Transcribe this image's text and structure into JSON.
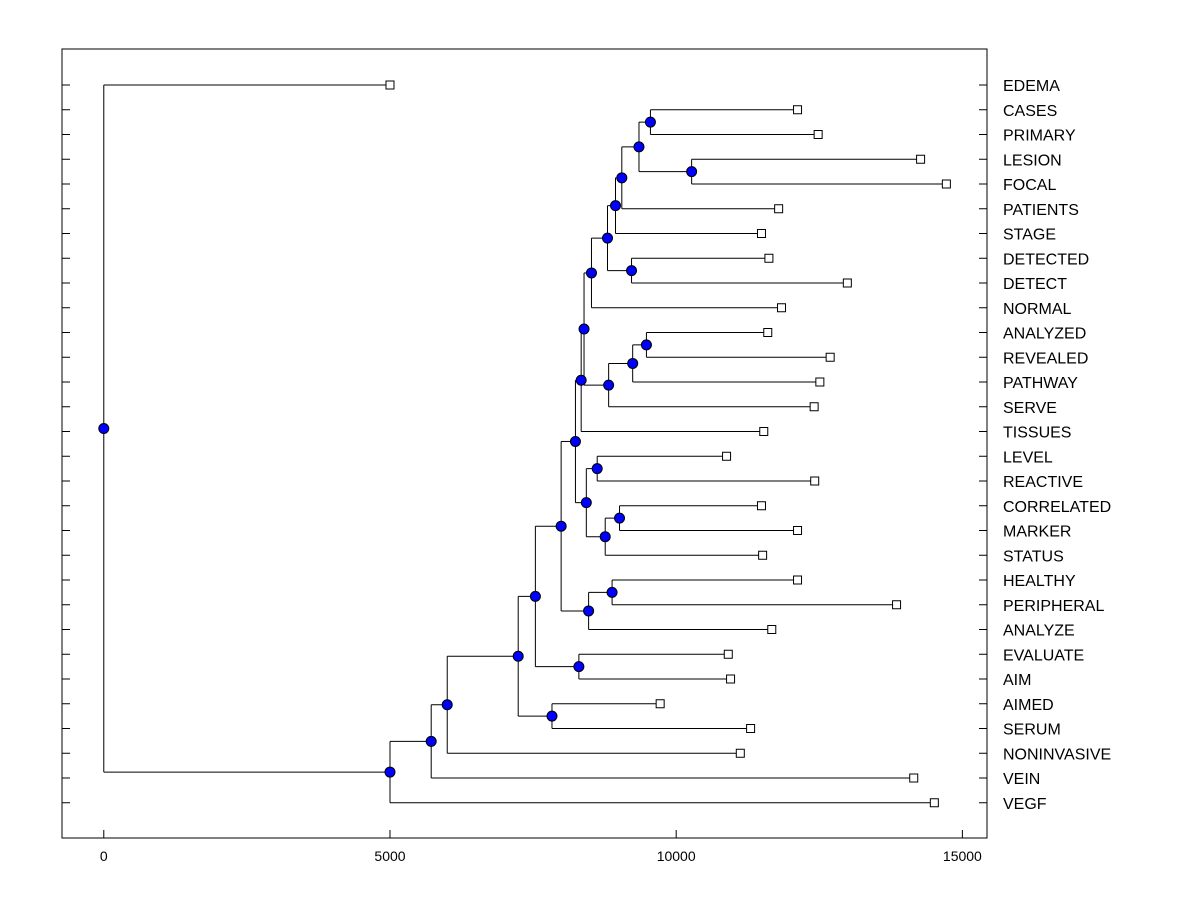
{
  "chart_data": {
    "type": "dendrogram",
    "orientation": "horizontal",
    "title": "",
    "xlabel": "",
    "ylabel": "",
    "xlim": [
      -730,
      15430
    ],
    "x_ticks": [
      0,
      5000,
      10000,
      15000
    ],
    "x_tick_labels": [
      "0",
      "5000",
      "10000",
      "15000"
    ],
    "leaves": [
      "EDEMA",
      "CASES",
      "PRIMARY",
      "LESION",
      "FOCAL",
      "PATIENTS",
      "STAGE",
      "DETECTED",
      "DETECT",
      "NORMAL",
      "ANALYZED",
      "REVEALED",
      "PATHWAY",
      "SERVE",
      "TISSUES",
      "LEVEL",
      "REACTIVE",
      "CORRELATED",
      "MARKER",
      "STATUS",
      "HEALTHY",
      "PERIPHERAL",
      "ANALYZE",
      "EVALUATE",
      "AIM",
      "AIMED",
      "SERUM",
      "NONINVASIVE",
      "VEIN",
      "VEGF"
    ],
    "leaf_values": [
      5000,
      12120,
      12480,
      14270,
      14720,
      11790,
      11490,
      11620,
      12990,
      11840,
      11600,
      12690,
      12510,
      12410,
      11530,
      10880,
      12420,
      11490,
      12120,
      11510,
      12120,
      13850,
      11670,
      10910,
      10950,
      9720,
      11300,
      11120,
      14150,
      14510
    ],
    "merges": [
      {
        "id": "n1",
        "height": 9550,
        "children": [
          "CASES",
          "PRIMARY"
        ]
      },
      {
        "id": "n2",
        "height": 10270,
        "children": [
          "LESION",
          "FOCAL"
        ]
      },
      {
        "id": "n3",
        "height": 9350,
        "children": [
          "n1",
          "n2"
        ]
      },
      {
        "id": "n4",
        "height": 9050,
        "children": [
          "n3",
          "PATIENTS"
        ]
      },
      {
        "id": "n5",
        "height": 8940,
        "children": [
          "n4",
          "STAGE"
        ]
      },
      {
        "id": "n6",
        "height": 9220,
        "children": [
          "DETECTED",
          "DETECT"
        ]
      },
      {
        "id": "n7",
        "height": 8800,
        "children": [
          "n5",
          "n6"
        ]
      },
      {
        "id": "n8",
        "height": 8520,
        "children": [
          "n7",
          "NORMAL"
        ]
      },
      {
        "id": "n9",
        "height": 9480,
        "children": [
          "ANALYZED",
          "REVEALED"
        ]
      },
      {
        "id": "n10",
        "height": 9240,
        "children": [
          "n9",
          "PATHWAY"
        ]
      },
      {
        "id": "n11",
        "height": 8820,
        "children": [
          "n10",
          "SERVE"
        ]
      },
      {
        "id": "n12",
        "height": 8390,
        "children": [
          "n8",
          "n11"
        ]
      },
      {
        "id": "n13",
        "height": 8340,
        "children": [
          "n12",
          "TISSUES"
        ]
      },
      {
        "id": "n14",
        "height": 8620,
        "children": [
          "LEVEL",
          "REACTIVE"
        ]
      },
      {
        "id": "n15",
        "height": 9010,
        "children": [
          "CORRELATED",
          "MARKER"
        ]
      },
      {
        "id": "n16",
        "height": 8760,
        "children": [
          "n15",
          "STATUS"
        ]
      },
      {
        "id": "n17",
        "height": 8430,
        "children": [
          "n14",
          "n16"
        ]
      },
      {
        "id": "n18",
        "height": 8240,
        "children": [
          "n13",
          "n17"
        ]
      },
      {
        "id": "n19",
        "height": 8880,
        "children": [
          "HEALTHY",
          "PERIPHERAL"
        ]
      },
      {
        "id": "n20",
        "height": 8470,
        "children": [
          "n19",
          "ANALYZE"
        ]
      },
      {
        "id": "n21",
        "height": 7990,
        "children": [
          "n18",
          "n20"
        ]
      },
      {
        "id": "n22",
        "height": 8300,
        "children": [
          "EVALUATE",
          "AIM"
        ]
      },
      {
        "id": "n23",
        "height": 7540,
        "children": [
          "n21",
          "n22"
        ]
      },
      {
        "id": "n24",
        "height": 7830,
        "children": [
          "AIMED",
          "SERUM"
        ]
      },
      {
        "id": "n25",
        "height": 7240,
        "children": [
          "n23",
          "n24"
        ]
      },
      {
        "id": "n26",
        "height": 6000,
        "children": [
          "n25",
          "NONINVASIVE"
        ]
      },
      {
        "id": "n27",
        "height": 5720,
        "children": [
          "n26",
          "VEIN"
        ]
      },
      {
        "id": "n28",
        "height": 5000,
        "children": [
          "n27",
          "VEGF"
        ]
      },
      {
        "id": "root",
        "height": 0,
        "children": [
          "EDEMA",
          "n28"
        ]
      }
    ],
    "grid": false,
    "legend": "none",
    "colors": {
      "node": "#0000ff",
      "line": "#000000",
      "leaf_marker": "#ffffff"
    }
  }
}
